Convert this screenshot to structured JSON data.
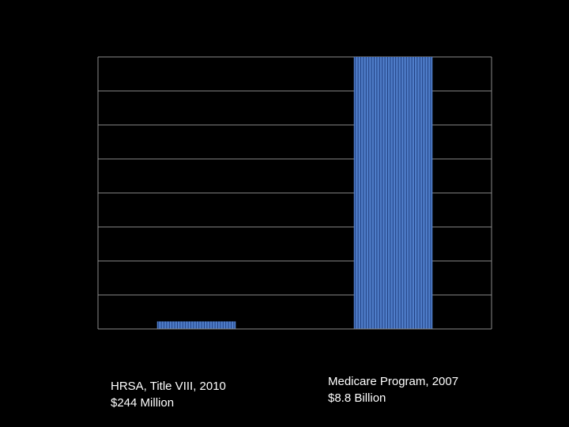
{
  "chart_data": {
    "type": "bar",
    "categories": [
      {
        "line1": "HRSA, Title VIII, 2010",
        "line2": "$244 Million"
      },
      {
        "line1": "Medicare Program, 2007",
        "line2": "$8.8 Billion"
      }
    ],
    "values": [
      0.244,
      8.8
    ],
    "units": "billion USD",
    "ylim": [
      0,
      8.8
    ],
    "gridlines": 8,
    "grid": true,
    "title": "",
    "xlabel": "",
    "ylabel": ""
  },
  "colors": {
    "background": "#000000",
    "bar_fill": "#4f7dc9",
    "bar_stripe": "#1b3a7a",
    "grid": "#8a8a8a",
    "text": "#ffffff"
  }
}
